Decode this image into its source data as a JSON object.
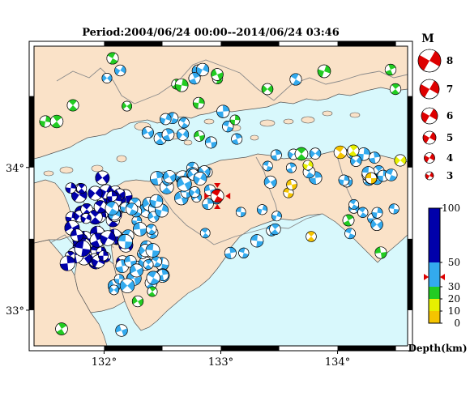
{
  "title": "Period:2004/06/24 00:00--2014/06/24 03:46",
  "map": {
    "lon_ticks": [
      {
        "value": 132,
        "label": "132°"
      },
      {
        "value": 133,
        "label": "133°"
      },
      {
        "value": 134,
        "label": "134°"
      }
    ],
    "lat_ticks": [
      {
        "value": 34,
        "label": "34°"
      },
      {
        "value": 33,
        "label": "33°"
      }
    ],
    "lon_range": [
      131.4,
      134.6
    ],
    "lat_range": [
      32.75,
      34.85
    ],
    "colors": {
      "land": "#fae2c8",
      "sea": "#d8f8fc",
      "border": "#8a8a8a",
      "coast": "#555555"
    }
  },
  "legend": {
    "magnitude_title": "M",
    "magnitudes": [
      {
        "m": 8,
        "label": "8"
      },
      {
        "m": 7,
        "label": "7"
      },
      {
        "m": 6,
        "label": "6"
      },
      {
        "m": 5,
        "label": "5"
      },
      {
        "m": 4,
        "label": "4"
      },
      {
        "m": 3,
        "label": "3"
      }
    ],
    "depth_ticks": [
      {
        "value": 100,
        "label": "100"
      },
      {
        "value": 50,
        "label": "50"
      },
      {
        "value": 30,
        "label": "30"
      },
      {
        "value": 20,
        "label": "20"
      },
      {
        "value": 10,
        "label": "10"
      },
      {
        "value": 0,
        "label": "0"
      }
    ],
    "depth_label": "Depth(km)",
    "depth_colors": [
      {
        "min": 0,
        "max": 10,
        "color": "#f5c400"
      },
      {
        "min": 10,
        "max": 20,
        "color": "#e6f000"
      },
      {
        "min": 20,
        "max": 30,
        "color": "#22cc22"
      },
      {
        "min": 30,
        "max": 50,
        "color": "#33aaee"
      },
      {
        "min": 50,
        "max": 100,
        "color": "#0000aa"
      }
    ],
    "marker_depth": 38
  },
  "main_event": {
    "lon": 132.97,
    "lat": 33.8,
    "mag": 5,
    "depth": 38,
    "color": "#dd0000"
  }
}
